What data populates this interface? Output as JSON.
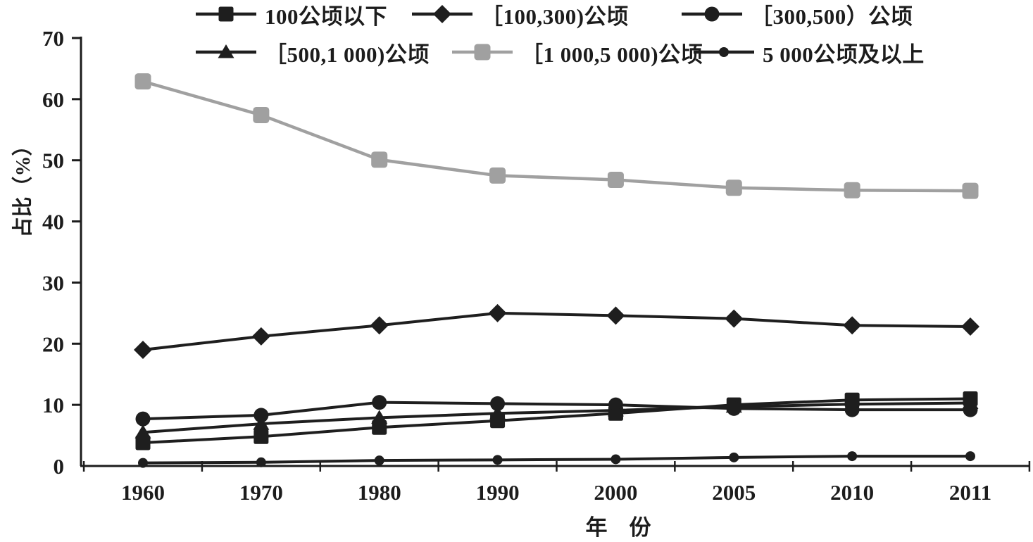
{
  "chart_data": {
    "type": "line",
    "title": "",
    "xlabel": "年　份",
    "ylabel": "占比（%）",
    "ylim": [
      0,
      70
    ],
    "yticks": [
      0,
      10,
      20,
      30,
      40,
      50,
      60,
      70
    ],
    "grid": false,
    "legend_position": "top",
    "axis_color": "#1c1c1c",
    "categories": [
      "1960",
      "1970",
      "1980",
      "1990",
      "2000",
      "2005",
      "2010",
      "2011"
    ],
    "draw_order": [
      4,
      0,
      1,
      2,
      3,
      5
    ],
    "series": [
      {
        "name": "100公顷以下",
        "marker": "square",
        "color": "#1e1e1e",
        "line_width": 4,
        "values": [
          3.8,
          4.8,
          6.3,
          7.4,
          8.6,
          10.0,
          10.8,
          11.0
        ]
      },
      {
        "name": "［100,300)公顷",
        "marker": "diamond",
        "color": "#1e1e1e",
        "line_width": 4,
        "values": [
          19.0,
          21.2,
          23.0,
          25.0,
          24.6,
          24.1,
          23.0,
          22.8
        ]
      },
      {
        "name": "［300,500）公顷",
        "marker": "circle",
        "color": "#1e1e1e",
        "line_width": 4,
        "values": [
          7.7,
          8.3,
          10.4,
          10.2,
          10.0,
          9.4,
          9.2,
          9.2
        ]
      },
      {
        "name": "［500,1 000)公顷",
        "marker": "triangle",
        "color": "#1e1e1e",
        "line_width": 4,
        "values": [
          5.5,
          6.9,
          7.9,
          8.6,
          9.1,
          9.7,
          10.1,
          10.3
        ]
      },
      {
        "name": "［1 000,5 000)公顷",
        "marker": "square-large",
        "color": "#a0a0a0",
        "line_width": 4.5,
        "values": [
          62.9,
          57.4,
          50.1,
          47.5,
          46.8,
          45.5,
          45.1,
          45.0
        ]
      },
      {
        "name": "5 000公顷及以上",
        "marker": "circle-small",
        "color": "#1e1e1e",
        "line_width": 4,
        "values": [
          0.5,
          0.6,
          0.9,
          1.0,
          1.1,
          1.4,
          1.6,
          1.6
        ]
      }
    ]
  }
}
